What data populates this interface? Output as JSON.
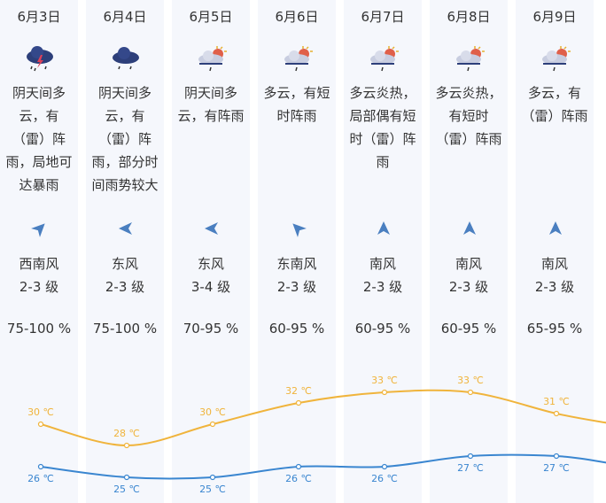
{
  "colors": {
    "high": "#f0b43c",
    "low": "#3a86d0",
    "column_bg": "#f5f7fc"
  },
  "days": [
    {
      "date": "6月3日",
      "icon": "thunderstorm-rain-icon",
      "desc": "阴天间多云，有（雷）阵雨，局地可达暴雨",
      "wind_dir": "西南风",
      "wind_level": "2-3 级",
      "wind_arrow_deg": 45,
      "humidity": "75-100 %",
      "high": 30,
      "low": 26,
      "high_label": "30 ℃",
      "low_label": "26 ℃"
    },
    {
      "date": "6月4日",
      "icon": "rain-cloud-icon",
      "desc": "阴天间多云，有（雷）阵雨，部分时间雨势较大",
      "wind_dir": "东风",
      "wind_level": "2-3 级",
      "wind_arrow_deg": -90,
      "humidity": "75-100 %",
      "high": 28,
      "low": 25,
      "high_label": "28 ℃",
      "low_label": "25 ℃"
    },
    {
      "date": "6月5日",
      "icon": "sun-cloud-rain-icon",
      "desc": "阴天间多云，有阵雨",
      "wind_dir": "东风",
      "wind_level": "3-4 级",
      "wind_arrow_deg": -90,
      "humidity": "70-95 %",
      "high": 30,
      "low": 25,
      "high_label": "30 ℃",
      "low_label": "25 ℃"
    },
    {
      "date": "6月6日",
      "icon": "sun-cloud-rain-icon",
      "desc": "多云，有短时阵雨",
      "wind_dir": "东南风",
      "wind_level": "2-3 级",
      "wind_arrow_deg": -45,
      "humidity": "60-95 %",
      "high": 32,
      "low": 26,
      "high_label": "32 ℃",
      "low_label": "26 ℃"
    },
    {
      "date": "6月7日",
      "icon": "sun-cloud-rain-icon",
      "desc": "多云炎热，局部偶有短时（雷）阵雨",
      "wind_dir": "南风",
      "wind_level": "2-3 级",
      "wind_arrow_deg": 0,
      "humidity": "60-95 %",
      "high": 33,
      "low": 26,
      "high_label": "33 ℃",
      "low_label": "26 ℃"
    },
    {
      "date": "6月8日",
      "icon": "sun-cloud-rain-icon",
      "desc": "多云炎热，有短时（雷）阵雨",
      "wind_dir": "南风",
      "wind_level": "2-3 级",
      "wind_arrow_deg": 0,
      "humidity": "60-95 %",
      "high": 33,
      "low": 27,
      "high_label": "33 ℃",
      "low_label": "27 ℃"
    },
    {
      "date": "6月9日",
      "icon": "sun-cloud-rain-icon",
      "desc": "多云，有（雷）阵雨",
      "wind_dir": "南风",
      "wind_level": "2-3 级",
      "wind_arrow_deg": 0,
      "humidity": "65-95 %",
      "high": 31,
      "low": 27,
      "high_label": "31 ℃",
      "low_label": "27 ℃"
    }
  ]
}
